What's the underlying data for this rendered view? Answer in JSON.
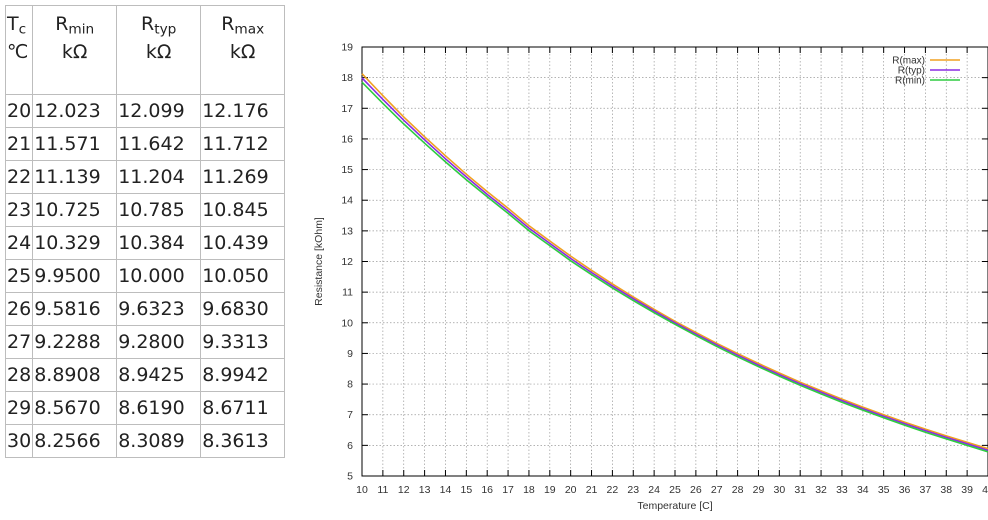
{
  "table": {
    "headers": [
      {
        "main": "T",
        "sub": "c",
        "unit": "℃"
      },
      {
        "main": "R",
        "sub": "min",
        "unit": "kΩ"
      },
      {
        "main": "R",
        "sub": "typ",
        "unit": "kΩ"
      },
      {
        "main": "R",
        "sub": "max",
        "unit": "kΩ"
      }
    ],
    "rows": [
      [
        "20",
        "12.023",
        "12.099",
        "12.176"
      ],
      [
        "21",
        "11.571",
        "11.642",
        "11.712"
      ],
      [
        "22",
        "11.139",
        "11.204",
        "11.269"
      ],
      [
        "23",
        "10.725",
        "10.785",
        "10.845"
      ],
      [
        "24",
        "10.329",
        "10.384",
        "10.439"
      ],
      [
        "25",
        "9.9500",
        "10.000",
        "10.050"
      ],
      [
        "26",
        "9.5816",
        "9.6323",
        "9.6830"
      ],
      [
        "27",
        "9.2288",
        "9.2800",
        "9.3313"
      ],
      [
        "28",
        "8.8908",
        "8.9425",
        "8.9942"
      ],
      [
        "29",
        "8.5670",
        "8.6190",
        "8.6711"
      ],
      [
        "30",
        "8.2566",
        "8.3089",
        "8.3613"
      ]
    ]
  },
  "chart_data": {
    "type": "line",
    "title": "",
    "xlabel": "Temperature [C]",
    "ylabel": "Resistance [kOhm]",
    "xlim": [
      10,
      40
    ],
    "ylim": [
      5,
      19
    ],
    "xticks": [
      "10",
      "11",
      "12",
      "13",
      "14",
      "15",
      "16",
      "17",
      "18",
      "19",
      "20",
      "21",
      "22",
      "23",
      "24",
      "25",
      "26",
      "27",
      "28",
      "29",
      "30",
      "31",
      "32",
      "33",
      "34",
      "35",
      "36",
      "37",
      "38",
      "39",
      "40"
    ],
    "yticks": [
      "5",
      "6",
      "7",
      "8",
      "9",
      "10",
      "11",
      "12",
      "13",
      "14",
      "15",
      "16",
      "17",
      "18",
      "19"
    ],
    "grid": true,
    "legend_position": "top-right",
    "x": [
      10,
      11,
      12,
      13,
      14,
      15,
      16,
      17,
      18,
      19,
      20,
      21,
      22,
      23,
      24,
      25,
      26,
      27,
      28,
      29,
      30,
      31,
      32,
      33,
      34,
      35,
      36,
      37,
      38,
      39,
      40
    ],
    "series": [
      {
        "name": "R(max)",
        "color": "#f0a020",
        "values": [
          18.13,
          17.41,
          16.72,
          16.07,
          15.45,
          14.85,
          14.28,
          13.74,
          13.17,
          12.67,
          12.176,
          11.712,
          11.269,
          10.845,
          10.439,
          10.05,
          9.683,
          9.331,
          8.994,
          8.671,
          8.361,
          8.06,
          7.78,
          7.51,
          7.25,
          7.0,
          6.76,
          6.53,
          6.31,
          6.1,
          5.89
        ]
      },
      {
        "name": "R(typ)",
        "color": "#8b2be2",
        "values": [
          17.99,
          17.29,
          16.61,
          15.97,
          15.35,
          14.76,
          14.19,
          13.65,
          13.09,
          12.59,
          12.099,
          11.642,
          11.204,
          10.785,
          10.384,
          10.0,
          9.632,
          9.28,
          8.943,
          8.619,
          8.309,
          8.01,
          7.73,
          7.46,
          7.2,
          6.95,
          6.71,
          6.48,
          6.26,
          6.05,
          5.84
        ]
      },
      {
        "name": "R(min)",
        "color": "#2ecc40",
        "values": [
          17.85,
          17.16,
          16.49,
          15.86,
          15.25,
          14.67,
          14.11,
          13.57,
          13.01,
          12.52,
          12.023,
          11.571,
          11.139,
          10.725,
          10.329,
          9.95,
          9.582,
          9.229,
          8.891,
          8.567,
          8.257,
          7.96,
          7.68,
          7.41,
          7.15,
          6.9,
          6.66,
          6.43,
          6.21,
          6.0,
          5.79
        ]
      }
    ]
  }
}
